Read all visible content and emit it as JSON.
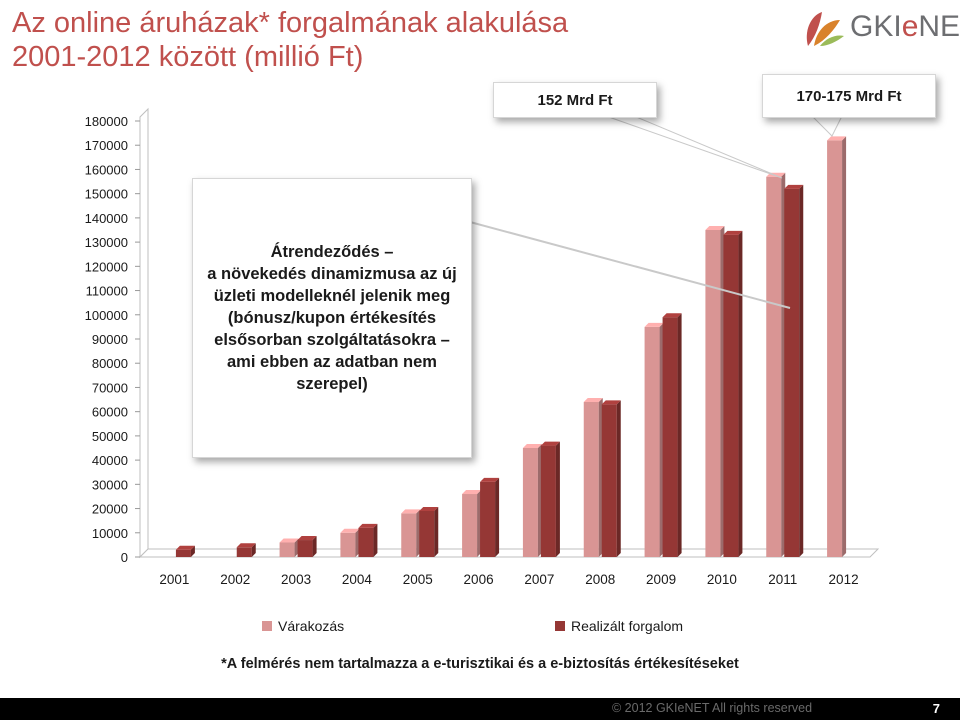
{
  "slide": {
    "title_line1": "Az online áruházak* forgalmának alakulása",
    "title_line2": "2001-2012 között (millió Ft)",
    "logo_text_pre": "GKI",
    "logo_text_e": "e",
    "logo_text_post": "NET",
    "callout_main": "Átrendeződés –\na növekedés dinamizmusa az új üzleti modelleknél jelenik meg (bónusz/kupon értékesítés elsősorban szolgáltatásokra – ami ebben az adatban nem szerepel)",
    "callout_152": "152 Mrd Ft",
    "callout_170": "170-175 Mrd Ft",
    "footnote": "*A felmérés nem tartalmazza a e-turisztikai és a e-biztosítás értékesítéseket",
    "footer_text": "© 2012  GKIeNET  All rights reserved",
    "page_number": "7"
  },
  "colors": {
    "title": "#c0504d",
    "varakozas": "#d99594",
    "realizalt": "#953735"
  },
  "chart_data": {
    "type": "bar",
    "categories": [
      "2001",
      "2002",
      "2003",
      "2004",
      "2005",
      "2006",
      "2007",
      "2008",
      "2009",
      "2010",
      "2011",
      "2012"
    ],
    "series": [
      {
        "name": "Várakozás",
        "values": [
          null,
          null,
          6000,
          10000,
          18000,
          26000,
          45000,
          64000,
          95000,
          135000,
          157000,
          172000
        ]
      },
      {
        "name": "Realizált forgalom",
        "values": [
          3000,
          4000,
          7000,
          12000,
          19000,
          31000,
          46000,
          63000,
          99000,
          133000,
          152000,
          null
        ]
      }
    ],
    "yticks": [
      0,
      10000,
      20000,
      30000,
      40000,
      50000,
      60000,
      70000,
      80000,
      90000,
      100000,
      110000,
      120000,
      130000,
      140000,
      150000,
      160000,
      170000,
      180000
    ],
    "ylim": [
      0,
      180000
    ],
    "grid": false,
    "legend_position": "bottom"
  }
}
